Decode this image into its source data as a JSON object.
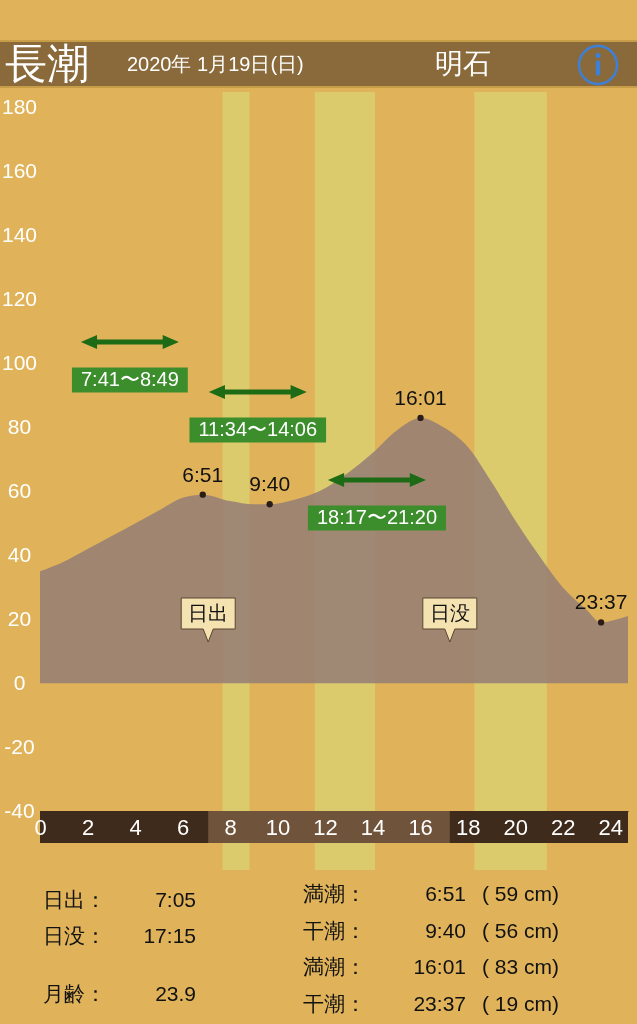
{
  "chart_data": [
    {
      "type": "area",
      "title": "長潮",
      "subtitle": "2020年 1月19日(日)",
      "series": [
        {
          "color": "#947e76",
          "x": [
            0,
            1,
            2,
            3,
            4,
            5,
            6,
            6.85,
            8,
            9,
            9.667,
            10.5,
            11,
            12,
            13,
            14,
            15,
            16.017,
            17,
            18,
            19,
            20,
            21,
            22,
            23,
            23.617,
            24.3,
            24.75
          ],
          "values": [
            35,
            38,
            42,
            46,
            50,
            54,
            58,
            59,
            57,
            56,
            56,
            57,
            58,
            61,
            66,
            72,
            79,
            83,
            80,
            74,
            63,
            51,
            40,
            30,
            23,
            19,
            20,
            21
          ]
        },
        {
          "type": "scatter",
          "color": "#2a1d17",
          "marker": "circle",
          "x": [
            6.85,
            9.667,
            16.017,
            23.617
          ],
          "values": [
            59,
            56,
            83,
            19
          ]
        }
      ],
      "xlim": [
        0,
        24.75
      ],
      "ylim": [
        -40,
        185
      ],
      "yticks": [
        -40,
        -20,
        0,
        20,
        40,
        60,
        80,
        100,
        120,
        140,
        160,
        180
      ],
      "tick_labels": "y",
      "bands": [
        {
          "axis": "x",
          "from": 7.683,
          "to": 8.817,
          "label": "7:41〜8:49",
          "color": "#dccb6c"
        },
        {
          "axis": "x",
          "from": 11.567,
          "to": 14.1,
          "label": "11:34〜14:06",
          "color": "#dccb6c"
        },
        {
          "axis": "x",
          "from": 18.283,
          "to": 21.333,
          "label": "18:17〜21:20",
          "color": "#dccb6c"
        }
      ],
      "annotations": [
        {
          "text": "6:51",
          "x": 6.85,
          "y": 59
        },
        {
          "text": "9:40",
          "x": 9.667,
          "y": 56
        },
        {
          "text": "16:01",
          "x": 16.017,
          "y": 83
        },
        {
          "text": "23:37",
          "x": 23.617,
          "y": 19
        },
        "明石",
        "日出",
        "日没",
        "日出：\t7:05",
        "日没：\t17:15",
        "月齢：\t23.9",
        "満潮：\t6:51\t( 59 cm)",
        "干潮：\t9:40\t( 56 cm)",
        "満潮：\t16:01\t( 83 cm)",
        "干潮：\t23:37\t( 19 cm)"
      ]
    },
    {
      "type": "bar",
      "orientation": "horizontal",
      "categories": [
        null
      ],
      "base": [
        7.08
      ],
      "values": [
        10.17
      ],
      "color": "#70533b",
      "xlim": [
        0,
        24.75
      ],
      "xticks": [
        0,
        2,
        4,
        6,
        8,
        10,
        12,
        14,
        16,
        18,
        20,
        22,
        24
      ],
      "tick_labels": "x"
    }
  ]
}
